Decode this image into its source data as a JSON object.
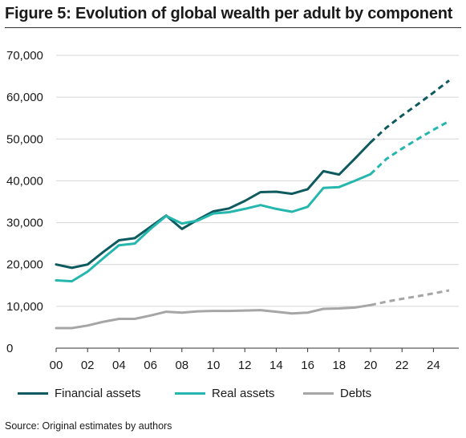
{
  "title": "Figure 5: Evolution of global wealth per adult by component",
  "source": "Source: Original estimates by authors",
  "colors": {
    "financial": "#0e5a5f",
    "real": "#25b7ad",
    "debts": "#a6a6a6",
    "grid": "#d6d6d6",
    "axis": "#333333"
  },
  "legend": [
    {
      "label": "Financial assets",
      "color": "#0e5a5f"
    },
    {
      "label": "Real assets",
      "color": "#25b7ad"
    },
    {
      "label": "Debts",
      "color": "#a6a6a6"
    }
  ],
  "chart_data": {
    "type": "line",
    "title": "Figure 5: Evolution of global wealth per adult by component",
    "xlabel": "",
    "ylabel": "",
    "ylim": [
      0,
      70000
    ],
    "xlim": [
      2000,
      2025
    ],
    "grid": true,
    "legend_position": "bottom",
    "y_ticks": [
      0,
      10000,
      20000,
      30000,
      40000,
      50000,
      60000,
      70000
    ],
    "y_tick_labels": [
      "0",
      "10,000",
      "20,000",
      "30,000",
      "40,000",
      "50,000",
      "60,000",
      "70,000"
    ],
    "x_ticks": [
      2000,
      2002,
      2004,
      2006,
      2008,
      2010,
      2012,
      2014,
      2016,
      2018,
      2020,
      2022,
      2024
    ],
    "x_tick_labels": [
      "00",
      "02",
      "04",
      "06",
      "08",
      "10",
      "12",
      "14",
      "16",
      "18",
      "20",
      "22",
      "24"
    ],
    "series": [
      {
        "name": "Financial assets",
        "color": "#0e5a5f",
        "x": [
          2000,
          2001,
          2002,
          2003,
          2004,
          2005,
          2006,
          2007,
          2008,
          2009,
          2010,
          2011,
          2012,
          2013,
          2014,
          2015,
          2016,
          2017,
          2018,
          2019,
          2020
        ],
        "values": [
          20000,
          19200,
          20000,
          23000,
          25800,
          26300,
          29000,
          31700,
          28500,
          30700,
          32700,
          33400,
          35200,
          37300,
          37400,
          36900,
          38000,
          42300,
          41500,
          45300,
          49200
        ],
        "projection_x": [
          2020,
          2021,
          2022,
          2023,
          2024,
          2025
        ],
        "projection_values": [
          49200,
          52700,
          55600,
          58300,
          61100,
          64000
        ]
      },
      {
        "name": "Real assets",
        "color": "#25b7ad",
        "x": [
          2000,
          2001,
          2002,
          2003,
          2004,
          2005,
          2006,
          2007,
          2008,
          2009,
          2010,
          2011,
          2012,
          2013,
          2014,
          2015,
          2016,
          2017,
          2018,
          2019,
          2020
        ],
        "values": [
          16200,
          16000,
          18300,
          21500,
          24600,
          25000,
          28500,
          31600,
          29800,
          30500,
          32200,
          32500,
          33300,
          34200,
          33300,
          32600,
          33800,
          38300,
          38500,
          40000,
          41600
        ],
        "projection_x": [
          2020,
          2021,
          2022,
          2023,
          2024,
          2025
        ],
        "projection_values": [
          41600,
          45200,
          47700,
          50000,
          52200,
          54300
        ]
      },
      {
        "name": "Debts",
        "color": "#a6a6a6",
        "x": [
          2000,
          2001,
          2002,
          2003,
          2004,
          2005,
          2006,
          2007,
          2008,
          2009,
          2010,
          2011,
          2012,
          2013,
          2014,
          2015,
          2016,
          2017,
          2018,
          2019,
          2020
        ],
        "values": [
          4800,
          4800,
          5400,
          6300,
          7000,
          7000,
          7800,
          8700,
          8500,
          8800,
          8900,
          8900,
          9000,
          9100,
          8700,
          8300,
          8500,
          9400,
          9500,
          9700,
          10300
        ],
        "projection_x": [
          2020,
          2021,
          2022,
          2023,
          2024,
          2025
        ],
        "projection_values": [
          10300,
          11100,
          11800,
          12400,
          13100,
          13800
        ]
      }
    ]
  }
}
